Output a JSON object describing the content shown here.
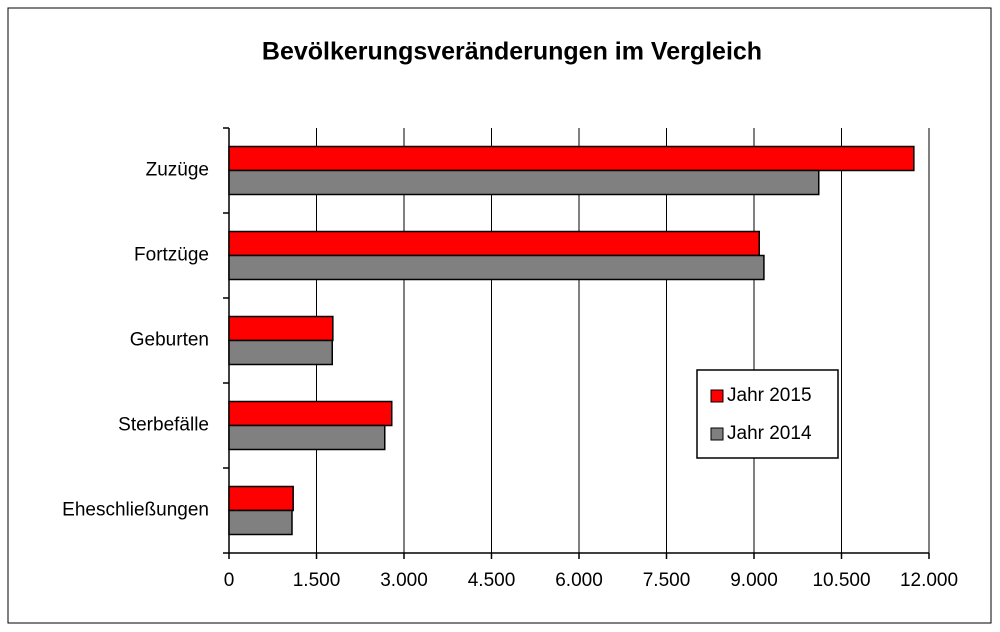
{
  "chart_data": {
    "type": "bar",
    "orientation": "horizontal",
    "title": "Bevölkerungsveränderungen im Vergleich",
    "categories": [
      "Zuzüge",
      "Fortzüge",
      "Geburten",
      "Sterbefälle",
      "Eheschließungen"
    ],
    "series": [
      {
        "name": "Jahr 2015",
        "color": "#ff0000",
        "values": [
          11740,
          9090,
          1780,
          2790,
          1100
        ]
      },
      {
        "name": "Jahr 2014",
        "color": "#808080",
        "values": [
          10110,
          9170,
          1770,
          2670,
          1080
        ]
      }
    ],
    "xlim": [
      0,
      12000
    ],
    "xticks": [
      0,
      {
        "value": 1500,
        "label": "1.500"
      },
      {
        "value": 3000,
        "label": "3.000"
      },
      {
        "value": 4500,
        "label": "4.500"
      },
      {
        "value": 6000,
        "label": "6.000"
      },
      {
        "value": 7500,
        "label": "7.500"
      },
      {
        "value": 9000,
        "label": "9.000"
      },
      {
        "value": 10500,
        "label": "10.500"
      },
      {
        "value": 12000,
        "label": "12.000"
      }
    ],
    "grid": true,
    "legend": "right"
  }
}
